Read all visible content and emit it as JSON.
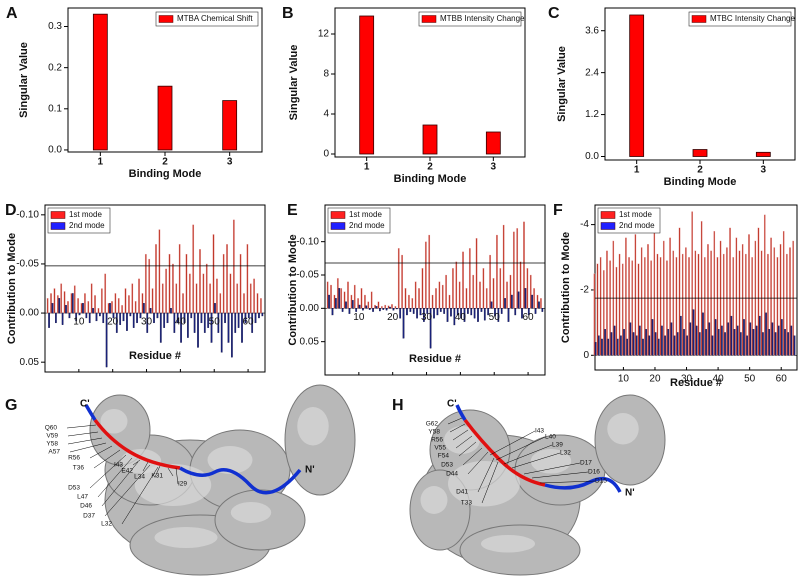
{
  "chart_data": [
    {
      "type": "bar",
      "panel": "A",
      "xlabel": "Binding Mode",
      "ylabel": "Singular Value",
      "categories": [
        "1",
        "2",
        "3"
      ],
      "series": [
        {
          "name": "MTBA Chemical Shift",
          "color": "#ff0000",
          "values": [
            0.33,
            0.155,
            0.12
          ]
        }
      ],
      "ylim": [
        -0.005,
        0.345
      ],
      "yticks": [
        {
          "value": 0,
          "label": "0.0"
        },
        0.1,
        0.2,
        0.3
      ]
    },
    {
      "type": "bar",
      "panel": "B",
      "xlabel": "Binding Mode",
      "ylabel": "Singular Value",
      "categories": [
        "1",
        "2",
        "3"
      ],
      "series": [
        {
          "name": "MTBB Intensity Change",
          "color": "#ff0000",
          "values": [
            13.8,
            2.9,
            2.2
          ]
        }
      ],
      "ylim": [
        -0.3,
        14.6
      ],
      "yticks": [
        0,
        4,
        8,
        12
      ]
    },
    {
      "type": "bar",
      "panel": "C",
      "xlabel": "Binding Mode",
      "ylabel": "Singular Value",
      "categories": [
        "1",
        "2",
        "3"
      ],
      "series": [
        {
          "name": "MTBC Intensity Change",
          "color": "#ff0000",
          "values": [
            4.05,
            0.2,
            0.12
          ]
        }
      ],
      "ylim": [
        -0.1,
        4.25
      ],
      "yticks": [
        {
          "value": 0,
          "label": "0.0"
        },
        1.2,
        2.4,
        3.6
      ]
    },
    {
      "type": "residue_bar",
      "panel": "D",
      "xlabel": "Residue #",
      "ylabel": "Contribution to Mode",
      "x": [
        1,
        2,
        3,
        4,
        5,
        6,
        7,
        8,
        9,
        10,
        11,
        12,
        13,
        14,
        15,
        16,
        17,
        18,
        19,
        20,
        21,
        22,
        23,
        24,
        25,
        26,
        27,
        28,
        29,
        30,
        31,
        32,
        33,
        34,
        35,
        36,
        37,
        38,
        39,
        40,
        41,
        42,
        43,
        44,
        45,
        46,
        47,
        48,
        49,
        50,
        51,
        52,
        53,
        54,
        55,
        56,
        57,
        58,
        59,
        60,
        61,
        62,
        63,
        64
      ],
      "series": [
        {
          "name": "1st mode",
          "color": "#c0392b",
          "values": [
            -0.015,
            -0.02,
            -0.025,
            -0.018,
            -0.03,
            -0.022,
            -0.012,
            -0.02,
            -0.028,
            -0.015,
            -0.01,
            -0.02,
            -0.012,
            -0.03,
            -0.018,
            -0.005,
            -0.025,
            -0.04,
            -0.01,
            -0.012,
            -0.02,
            -0.015,
            -0.008,
            -0.025,
            -0.018,
            -0.03,
            -0.012,
            -0.035,
            -0.02,
            -0.06,
            -0.055,
            -0.025,
            -0.07,
            -0.085,
            -0.03,
            -0.045,
            -0.06,
            -0.05,
            -0.03,
            -0.07,
            -0.02,
            -0.06,
            -0.04,
            -0.09,
            -0.03,
            -0.065,
            -0.04,
            -0.05,
            -0.03,
            -0.08,
            -0.035,
            -0.02,
            -0.06,
            -0.07,
            -0.04,
            -0.095,
            -0.03,
            -0.06,
            -0.02,
            -0.07,
            -0.03,
            -0.035,
            -0.02,
            -0.015
          ]
        },
        {
          "name": "2nd mode",
          "color": "#1a237e",
          "values": [
            0.015,
            -0.01,
            0.01,
            -0.015,
            0.012,
            -0.008,
            0.005,
            -0.02,
            0.008,
            0.002,
            -0.01,
            0.005,
            0.01,
            -0.005,
            0.008,
            0.003,
            0.01,
            0.055,
            -0.01,
            0.005,
            0.02,
            0.012,
            0.008,
            0.018,
            0.003,
            0.015,
            0.01,
            0.005,
            -0.01,
            0.02,
            -0.005,
            0.01,
            0.005,
            0.03,
            0.015,
            0.01,
            -0.005,
            0.02,
            0.01,
            0.03,
            0.01,
            0.025,
            0.005,
            0.02,
            0.035,
            0.01,
            0.02,
            0.015,
            0.03,
            -0.01,
            0.02,
            0.04,
            0.01,
            0.03,
            0.045,
            0.02,
            0.015,
            0.03,
            0.01,
            0.005,
            0.02,
            0.01,
            0.005,
            0.003
          ]
        }
      ],
      "xlim": [
        0,
        65
      ],
      "xticks": [
        10,
        20,
        30,
        40,
        50,
        60
      ],
      "ylim": [
        -0.11,
        0.06
      ],
      "y_inverted": true,
      "reference_line": -0.048,
      "yticks": [
        {
          "value": -0.1,
          "label": "-0.10"
        },
        -0.05,
        {
          "value": 0,
          "label": "0.00"
        },
        0.05
      ]
    },
    {
      "type": "residue_bar",
      "panel": "E",
      "xlabel": "Residue #",
      "ylabel": "Contribution to Mode",
      "x": [
        1,
        2,
        3,
        4,
        5,
        6,
        7,
        8,
        9,
        10,
        11,
        12,
        13,
        14,
        15,
        16,
        17,
        18,
        19,
        20,
        21,
        22,
        23,
        24,
        25,
        26,
        27,
        28,
        29,
        30,
        31,
        32,
        33,
        34,
        35,
        36,
        37,
        38,
        39,
        40,
        41,
        42,
        43,
        44,
        45,
        46,
        47,
        48,
        49,
        50,
        51,
        52,
        53,
        54,
        55,
        56,
        57,
        58,
        59,
        60,
        61,
        62,
        63,
        64
      ],
      "series": [
        {
          "name": "1st mode",
          "color": "#c0392b",
          "values": [
            -0.04,
            -0.035,
            -0.02,
            -0.045,
            -0.03,
            -0.025,
            -0.04,
            -0.02,
            -0.035,
            -0.015,
            -0.03,
            -0.02,
            -0.01,
            -0.025,
            -0.005,
            -0.01,
            -0.003,
            -0.005,
            -0.004,
            -0.006,
            -0.003,
            -0.09,
            -0.08,
            -0.03,
            -0.02,
            -0.015,
            -0.04,
            -0.03,
            -0.06,
            -0.1,
            -0.11,
            -0.02,
            -0.03,
            -0.04,
            -0.035,
            -0.05,
            -0.02,
            -0.06,
            -0.07,
            -0.04,
            -0.085,
            -0.03,
            -0.09,
            -0.05,
            -0.105,
            -0.04,
            -0.06,
            -0.03,
            -0.08,
            -0.045,
            -0.11,
            -0.06,
            -0.125,
            -0.04,
            -0.05,
            -0.115,
            -0.12,
            -0.07,
            -0.13,
            -0.06,
            -0.05,
            -0.03,
            -0.02,
            -0.015
          ]
        },
        {
          "name": "2nd mode",
          "color": "#1a237e",
          "values": [
            -0.02,
            0.01,
            -0.015,
            -0.03,
            0.005,
            -0.01,
            0.008,
            -0.012,
            0.005,
            -0.005,
            0.003,
            -0.004,
            0.002,
            0.005,
            -0.003,
            0.004,
            0.002,
            0.003,
            -0.002,
            0.003,
            0.001,
            0.015,
            0.045,
            0.01,
            0.005,
            0.008,
            0.015,
            0.01,
            0.02,
            0.008,
            0.06,
            0.015,
            0.01,
            0.005,
            0.008,
            0.02,
            0.012,
            0.025,
            0.01,
            0.015,
            0.02,
            0.008,
            0.01,
            0.015,
            0.02,
            0.005,
            0.018,
            0.01,
            -0.01,
            0.012,
            0.02,
            0.008,
            -0.015,
            0.02,
            -0.02,
            0.01,
            -0.025,
            0.015,
            -0.03,
            0.01,
            -0.02,
            0.008,
            -0.01,
            0.005
          ]
        }
      ],
      "xlim": [
        0,
        65
      ],
      "xticks": [
        10,
        20,
        30,
        40,
        50,
        60
      ],
      "ylim": [
        -0.155,
        0.1
      ],
      "y_inverted": true,
      "reference_line": -0.068,
      "yticks": [
        {
          "value": -0.1,
          "label": "-0.10"
        },
        -0.05,
        {
          "value": 0,
          "label": "0.00"
        },
        0.05
      ]
    },
    {
      "type": "residue_bar",
      "panel": "F",
      "xlabel": "Residue #",
      "ylabel": "Contribution to Mode",
      "x": [
        1,
        2,
        3,
        4,
        5,
        6,
        7,
        8,
        9,
        10,
        11,
        12,
        13,
        14,
        15,
        16,
        17,
        18,
        19,
        20,
        21,
        22,
        23,
        24,
        25,
        26,
        27,
        28,
        29,
        30,
        31,
        32,
        33,
        34,
        35,
        36,
        37,
        38,
        39,
        40,
        41,
        42,
        43,
        44,
        45,
        46,
        47,
        48,
        49,
        50,
        51,
        52,
        53,
        54,
        55,
        56,
        57,
        58,
        59,
        60,
        61,
        62,
        63,
        64
      ],
      "series": [
        {
          "name": "1st mode",
          "color": "#c0392b",
          "values": [
            -2.5,
            -2.8,
            -3.0,
            -2.6,
            -3.2,
            -2.9,
            -3.5,
            -2.7,
            -3.1,
            -2.8,
            -3.6,
            -3.0,
            -2.9,
            -3.7,
            -2.8,
            -3.3,
            -3.0,
            -3.4,
            -2.9,
            -3.8,
            -3.1,
            -3.0,
            -3.5,
            -2.9,
            -3.6,
            -3.2,
            -3.0,
            -3.9,
            -3.1,
            -3.3,
            -3.0,
            -4.4,
            -3.2,
            -3.1,
            -4.1,
            -3.0,
            -3.4,
            -3.2,
            -3.8,
            -3.0,
            -3.5,
            -3.1,
            -3.3,
            -3.9,
            -3.0,
            -3.6,
            -3.2,
            -3.4,
            -3.1,
            -3.7,
            -3.0,
            -3.5,
            -3.9,
            -3.2,
            -4.3,
            -3.1,
            -3.6,
            -3.3,
            -3.0,
            -3.4,
            -3.8,
            -3.1,
            -3.3,
            -3.5
          ]
        },
        {
          "name": "2nd mode",
          "color": "#1a237e",
          "values": [
            -0.4,
            -0.6,
            -0.5,
            -0.8,
            -0.5,
            -0.7,
            -0.9,
            -0.5,
            -0.6,
            -0.8,
            -0.5,
            -1.0,
            -0.7,
            -0.6,
            -0.9,
            -0.5,
            -0.8,
            -0.6,
            -1.1,
            -0.7,
            -0.5,
            -0.9,
            -0.6,
            -0.8,
            -1.0,
            -0.6,
            -0.7,
            -1.2,
            -0.8,
            -0.6,
            -1.0,
            -1.4,
            -0.9,
            -0.7,
            -1.3,
            -0.8,
            -1.0,
            -0.6,
            -1.1,
            -0.8,
            -0.9,
            -0.7,
            -1.0,
            -1.2,
            -0.8,
            -0.9,
            -0.7,
            -1.1,
            -0.6,
            -1.0,
            -0.8,
            -0.9,
            -1.2,
            -0.7,
            -1.3,
            -0.8,
            -1.0,
            -0.7,
            -0.9,
            -1.1,
            -0.8,
            -0.7,
            -0.9,
            -0.6
          ]
        }
      ],
      "xlim": [
        1,
        65
      ],
      "xticks": [
        10,
        20,
        30,
        40,
        50,
        60
      ],
      "ylim": [
        -4.6,
        0.45
      ],
      "y_inverted": true,
      "reference_line": -1.75,
      "yticks": [
        -4,
        -2,
        0
      ]
    }
  ],
  "structures": [
    {
      "panel": "G",
      "termini": [
        "C'",
        "N'"
      ],
      "residues": [
        "Q60",
        "V59",
        "Y58",
        "A57",
        "R56",
        "T36",
        "D53",
        "L47",
        "D46",
        "D37",
        "L32",
        "I43",
        "E42",
        "L34",
        "K31",
        "I29"
      ]
    },
    {
      "panel": "H",
      "termini": [
        "C'",
        "N'"
      ],
      "residues": [
        "G62",
        "Y58",
        "R56",
        "V55",
        "F54",
        "D53",
        "D44",
        "D41",
        "T33",
        "I43",
        "L40",
        "L39",
        "L32",
        "D17",
        "D16",
        "D15"
      ]
    }
  ]
}
